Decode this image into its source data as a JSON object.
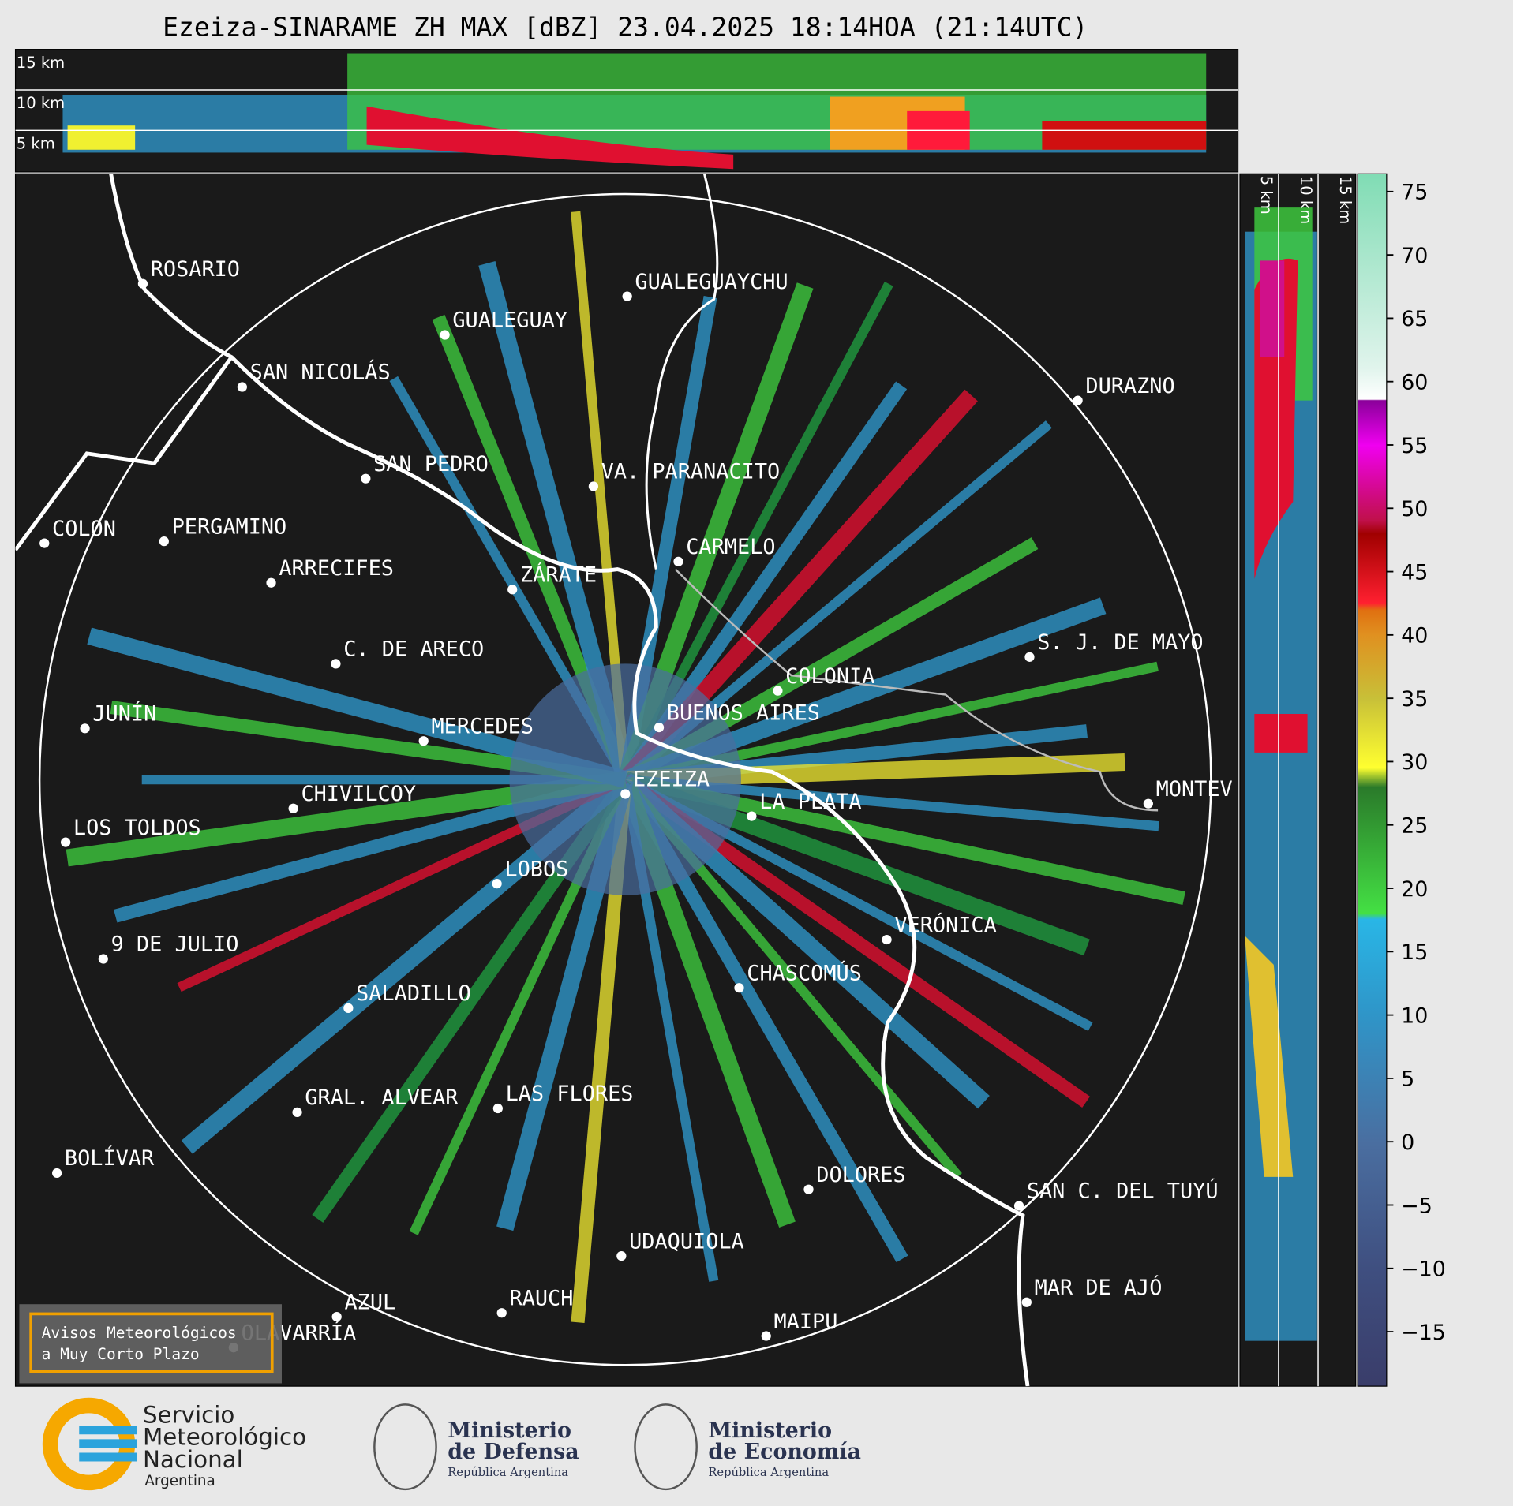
{
  "title": "Ezeiza-SINARAME ZH MAX [dBZ] 23.04.2025 18:14HOA (21:14UTC)",
  "top_panel": {
    "height_labels": [
      "15 km",
      "10 km",
      "5 km"
    ]
  },
  "side_panel": {
    "height_labels": [
      "5 km",
      "10 km",
      "15 km"
    ]
  },
  "map": {
    "cities": [
      "ROSARIO",
      "GUALEGUAYCHU",
      "GUALEGUAY",
      "SAN NICOLÁS",
      "DURAZNO",
      "SAN PEDRO",
      "VA. PARANACITO",
      "COLON",
      "PERGAMINO",
      "CARMELO",
      "ARRECIFES",
      "ZÁRATE",
      "S. J. DE MAYO",
      "C. DE ARECO",
      "COLONIA",
      "BUENOS AIRES",
      "JUNÍN",
      "MERCEDES",
      "EZEIZA",
      "MONTEV",
      "CHIVILCOY",
      "LA PLATA",
      "LOS TOLDOS",
      "LOBOS",
      "VERÓNICA",
      "9 DE JULIO",
      "CHASCOMÚS",
      "SALADILLO",
      "GRAL. ALVEAR",
      "LAS FLORES",
      "BOLÍVAR",
      "DOLORES",
      "SAN C. DEL TUYÚ",
      "UDAQUIOLA",
      "MAR DE AJÓ",
      "OLAVARRÍA",
      "AZUL",
      "RAUCH",
      "MAIPU"
    ]
  },
  "colorbar": {
    "lim": [
      -19.3,
      76.4
    ],
    "ticks": [
      75,
      70,
      65,
      60,
      55,
      50,
      45,
      40,
      35,
      30,
      25,
      20,
      15,
      10,
      5,
      0,
      {
        "value": -5,
        "label": "−5"
      },
      {
        "value": -10,
        "label": "−10"
      },
      {
        "value": -15,
        "label": "−15"
      }
    ]
  },
  "notice": {
    "lines": [
      "Avisos Meteorológicos",
      "a Muy Corto Plazo"
    ]
  },
  "logos": {
    "smn": [
      "Servicio",
      "Meteorológico",
      "Nacional",
      "Argentina"
    ],
    "defensa": [
      "Ministerio",
      "de Defensa",
      "República Argentina"
    ],
    "economia": [
      "Ministerio",
      "de Economía",
      "República Argentina"
    ]
  }
}
